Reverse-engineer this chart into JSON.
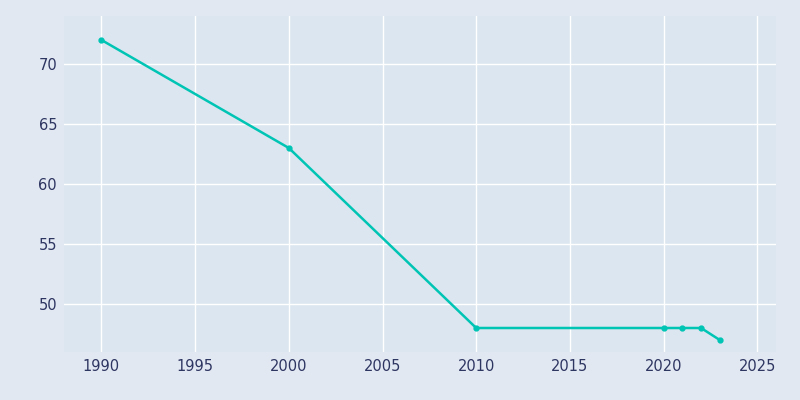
{
  "years": [
    1990,
    2000,
    2010,
    2020,
    2021,
    2022,
    2023
  ],
  "population": [
    72,
    63,
    48,
    48,
    48,
    48,
    47
  ],
  "line_color": "#00c4b4",
  "marker": "o",
  "marker_size": 3.5,
  "line_width": 1.8,
  "bg_color": "#e2e8f2",
  "plot_bg_color": "#dce6f0",
  "grid_color": "#ffffff",
  "xlim": [
    1988,
    2026
  ],
  "ylim": [
    46,
    74
  ],
  "xticks": [
    1990,
    1995,
    2000,
    2005,
    2010,
    2015,
    2020,
    2025
  ],
  "yticks": [
    50,
    55,
    60,
    65,
    70
  ],
  "tick_color": "#2d3561",
  "spine_color": "#dce6f0"
}
